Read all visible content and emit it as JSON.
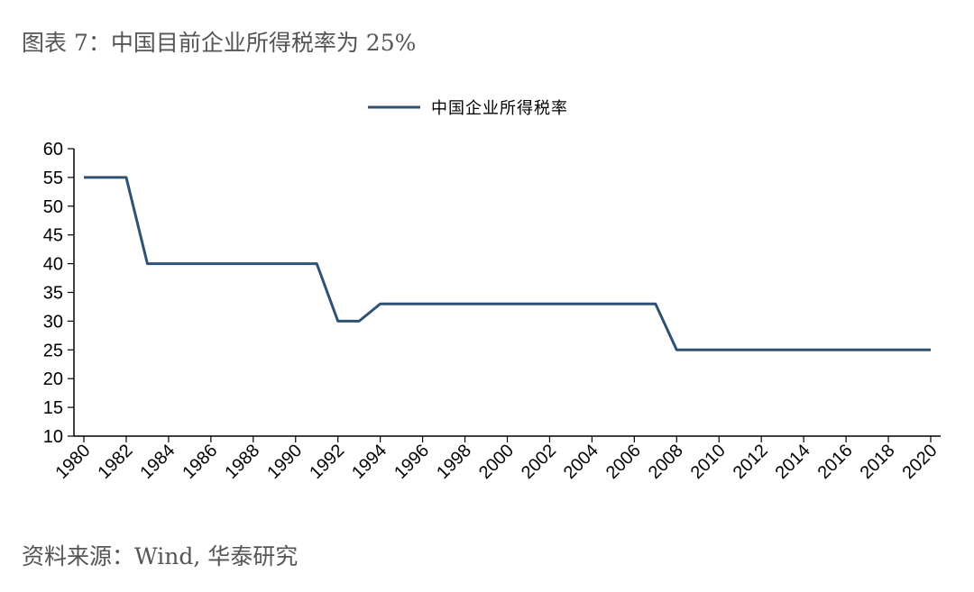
{
  "figure": {
    "title": "图表 7：中国目前企业所得税率为 25%",
    "source": "资料来源：Wind, 华泰研究"
  },
  "chart_data": {
    "type": "line",
    "title": "",
    "xlabel": "",
    "ylabel": "",
    "ylim": [
      10,
      60
    ],
    "yticks": [
      10,
      15,
      20,
      25,
      30,
      35,
      40,
      45,
      50,
      55,
      60
    ],
    "xlim": [
      1980,
      2020
    ],
    "xticks": [
      "1980",
      "1982",
      "1984",
      "1986",
      "1988",
      "1990",
      "1992",
      "1994",
      "1996",
      "1998",
      "2000",
      "2002",
      "2004",
      "2006",
      "2008",
      "2010",
      "2012",
      "2014",
      "2016",
      "2018",
      "2020"
    ],
    "grid": false,
    "legend_position": "top-center",
    "line_color": "#2e5273",
    "series": [
      {
        "name": "中国企业所得税率",
        "points": [
          [
            1980,
            55
          ],
          [
            1981,
            55
          ],
          [
            1982,
            55
          ],
          [
            1983,
            40
          ],
          [
            1984,
            40
          ],
          [
            1985,
            40
          ],
          [
            1986,
            40
          ],
          [
            1987,
            40
          ],
          [
            1988,
            40
          ],
          [
            1989,
            40
          ],
          [
            1990,
            40
          ],
          [
            1991,
            40
          ],
          [
            1992,
            30
          ],
          [
            1993,
            30
          ],
          [
            1994,
            33
          ],
          [
            1995,
            33
          ],
          [
            1996,
            33
          ],
          [
            1997,
            33
          ],
          [
            1998,
            33
          ],
          [
            1999,
            33
          ],
          [
            2000,
            33
          ],
          [
            2001,
            33
          ],
          [
            2002,
            33
          ],
          [
            2003,
            33
          ],
          [
            2004,
            33
          ],
          [
            2005,
            33
          ],
          [
            2006,
            33
          ],
          [
            2007,
            33
          ],
          [
            2008,
            25
          ],
          [
            2009,
            25
          ],
          [
            2010,
            25
          ],
          [
            2011,
            25
          ],
          [
            2012,
            25
          ],
          [
            2013,
            25
          ],
          [
            2014,
            25
          ],
          [
            2015,
            25
          ],
          [
            2016,
            25
          ],
          [
            2017,
            25
          ],
          [
            2018,
            25
          ],
          [
            2019,
            25
          ],
          [
            2020,
            25
          ]
        ]
      }
    ]
  }
}
